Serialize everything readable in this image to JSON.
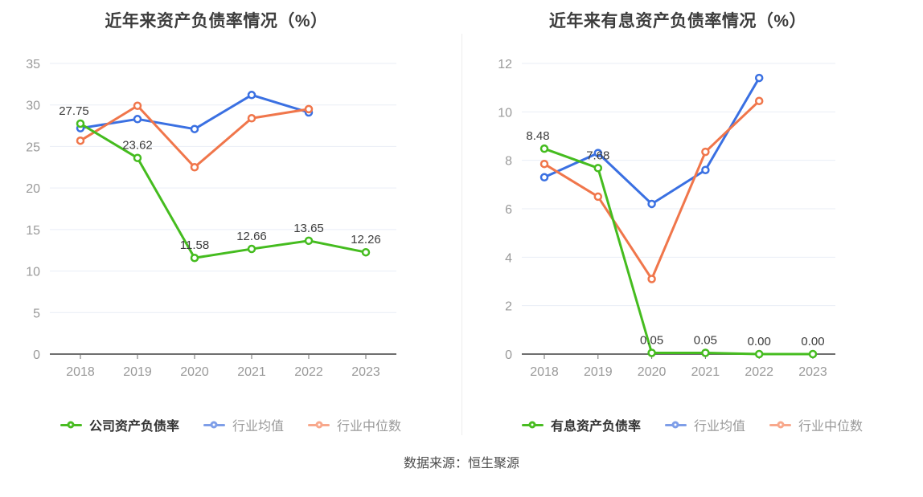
{
  "page": {
    "source_note": "数据来源：恒生聚源"
  },
  "chart_data": [
    {
      "type": "line",
      "title": "近年来资产负债率情况（%）",
      "categories": [
        "2018",
        "2019",
        "2020",
        "2021",
        "2022",
        "2023"
      ],
      "ylim": [
        0,
        35
      ],
      "y_ticks": [
        0,
        5,
        10,
        15,
        20,
        25,
        30,
        35
      ],
      "grid": true,
      "legend_position": "bottom",
      "series": [
        {
          "name": "公司资产负债率",
          "color": "#45BC1F",
          "legend_color": "#49BC22",
          "values": [
            27.75,
            23.62,
            11.58,
            12.66,
            13.65,
            12.26
          ],
          "labels": [
            "27.75",
            "23.62",
            "11.58",
            "12.66",
            "13.65",
            "12.26"
          ]
        },
        {
          "name": "行业均值",
          "color": "#3A70E2",
          "legend_color": "#7E9EE8",
          "values": [
            27.2,
            28.3,
            27.1,
            31.2,
            29.1,
            null
          ]
        },
        {
          "name": "行业中位数",
          "color": "#F0764B",
          "legend_color": "#F8A88C",
          "values": [
            25.7,
            29.9,
            22.5,
            28.4,
            29.5,
            null
          ]
        }
      ]
    },
    {
      "type": "line",
      "title": "近年来有息资产负债率情况（%）",
      "categories": [
        "2018",
        "2019",
        "2020",
        "2021",
        "2022",
        "2023"
      ],
      "ylim": [
        0,
        12
      ],
      "y_ticks": [
        0,
        2,
        4,
        6,
        8,
        10,
        12
      ],
      "grid": true,
      "legend_position": "bottom",
      "series": [
        {
          "name": "有息资产负债率",
          "color": "#45BC1F",
          "legend_color": "#49BC22",
          "values": [
            8.48,
            7.68,
            0.05,
            0.05,
            0.0,
            0.0
          ],
          "labels": [
            "8.48",
            "7.68",
            "0.05",
            "0.05",
            "0.00",
            "0.00"
          ]
        },
        {
          "name": "行业均值",
          "color": "#3A70E2",
          "legend_color": "#7E9EE8",
          "values": [
            7.3,
            8.3,
            6.2,
            7.6,
            11.4,
            null
          ]
        },
        {
          "name": "行业中位数",
          "color": "#F0764B",
          "legend_color": "#F8A88C",
          "values": [
            7.85,
            6.5,
            3.1,
            8.35,
            10.45,
            null
          ]
        }
      ]
    }
  ]
}
